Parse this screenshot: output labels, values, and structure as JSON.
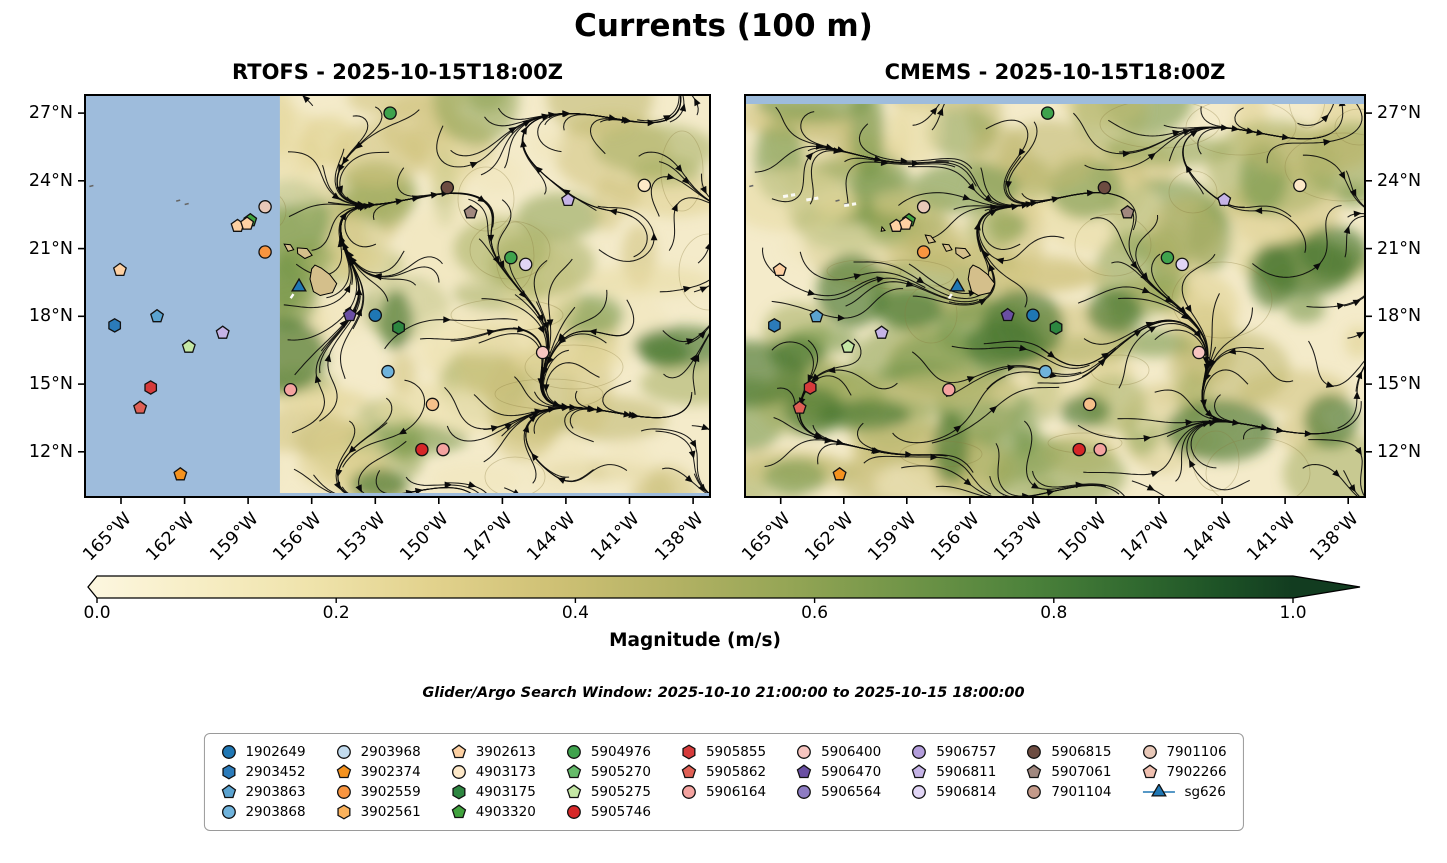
{
  "title": "Currents (100 m)",
  "search_window": "Glider/Argo Search Window: 2025-10-10 21:00:00 to 2025-10-15 18:00:00",
  "colors": {
    "ocean": "#9ebcdc",
    "land": "#d4bf8b",
    "map_background": "#f4ebca",
    "streamline": "#0b0b0b"
  },
  "colorbar": {
    "label": "Magnitude (m/s)",
    "ticks": [
      "0.0",
      "0.2",
      "0.4",
      "0.6",
      "0.8",
      "1.0"
    ],
    "min": 0.0,
    "max": 1.0,
    "extend": "max-arrow",
    "stops": [
      [
        0,
        "#fcf6de"
      ],
      [
        0.08,
        "#f7eec6"
      ],
      [
        0.18,
        "#efe3ab"
      ],
      [
        0.28,
        "#e2d28d"
      ],
      [
        0.38,
        "#cfc175"
      ],
      [
        0.48,
        "#b4b264"
      ],
      [
        0.58,
        "#94a555"
      ],
      [
        0.68,
        "#6f9447"
      ],
      [
        0.78,
        "#4c823b"
      ],
      [
        0.87,
        "#30692f"
      ],
      [
        0.94,
        "#1d5226"
      ],
      [
        1,
        "#123c20"
      ]
    ]
  },
  "legend": {
    "entries": [
      {
        "label": "1902649",
        "shape": "circle",
        "color": "#1f77b4",
        "col": 1,
        "row": 1
      },
      {
        "label": "2903452",
        "shape": "hexagon",
        "color": "#2b7bba",
        "col": 1,
        "row": 2
      },
      {
        "label": "2903863",
        "shape": "pentagon",
        "color": "#5ba3d0",
        "col": 1,
        "row": 3
      },
      {
        "label": "2903868",
        "shape": "circle",
        "color": "#6fb3dc",
        "col": 1,
        "row": 4
      },
      {
        "label": "2903968",
        "shape": "circle",
        "color": "#c3dcef",
        "col": 2,
        "row": 1
      },
      {
        "label": "3902374",
        "shape": "pentagon",
        "color": "#f5921e",
        "col": 2,
        "row": 2
      },
      {
        "label": "3902559",
        "shape": "circle",
        "color": "#f89540",
        "col": 2,
        "row": 3
      },
      {
        "label": "3902561",
        "shape": "hexagon",
        "color": "#fbb25c",
        "col": 2,
        "row": 4
      },
      {
        "label": "3902613",
        "shape": "pentagon",
        "color": "#fdd0a2",
        "col": 3,
        "row": 1
      },
      {
        "label": "4903173",
        "shape": "circle",
        "color": "#fde8c8",
        "col": 3,
        "row": 2
      },
      {
        "label": "4903175",
        "shape": "hexagon",
        "color": "#2d8640",
        "col": 3,
        "row": 3
      },
      {
        "label": "4903320",
        "shape": "pentagon",
        "color": "#41a33e",
        "col": 3,
        "row": 4
      },
      {
        "label": "5904976",
        "shape": "circle",
        "color": "#3fa34d",
        "col": 4,
        "row": 1
      },
      {
        "label": "5905270",
        "shape": "pentagon",
        "color": "#66bb6a",
        "col": 4,
        "row": 2
      },
      {
        "label": "5905275",
        "shape": "pentagon",
        "color": "#c5e8a5",
        "col": 4,
        "row": 3
      },
      {
        "label": "5905746",
        "shape": "circle",
        "color": "#d62728",
        "col": 4,
        "row": 4
      },
      {
        "label": "5905855",
        "shape": "hexagon",
        "color": "#d63b3b",
        "col": 5,
        "row": 1
      },
      {
        "label": "5905862",
        "shape": "pentagon",
        "color": "#e06055",
        "col": 5,
        "row": 2
      },
      {
        "label": "5906164",
        "shape": "circle",
        "color": "#f4a3a0",
        "col": 5,
        "row": 3
      },
      {
        "label": "5906400",
        "shape": "circle",
        "color": "#f7c5c0",
        "col": 6,
        "row": 1
      },
      {
        "label": "5906470",
        "shape": "pentagon",
        "color": "#6a4fa3",
        "col": 6,
        "row": 2
      },
      {
        "label": "5906564",
        "shape": "circle",
        "color": "#8e7cc3",
        "col": 6,
        "row": 3
      },
      {
        "label": "5906757",
        "shape": "circle",
        "color": "#b39ddb",
        "col": 7,
        "row": 1
      },
      {
        "label": "5906811",
        "shape": "pentagon",
        "color": "#c5b3e6",
        "col": 7,
        "row": 2
      },
      {
        "label": "5906814",
        "shape": "circle",
        "color": "#e1d5f5",
        "col": 7,
        "row": 3
      },
      {
        "label": "5906815",
        "shape": "circle",
        "color": "#6d4c41",
        "col": 8,
        "row": 1
      },
      {
        "label": "5907061",
        "shape": "pentagon",
        "color": "#a1887f",
        "col": 8,
        "row": 2
      },
      {
        "label": "7901104",
        "shape": "circle",
        "color": "#c49a8a",
        "col": 8,
        "row": 3
      },
      {
        "label": "7901106",
        "shape": "circle",
        "color": "#e8c8b8",
        "col": 9,
        "row": 1
      },
      {
        "label": "7902266",
        "shape": "pentagon",
        "color": "#f0c0b0",
        "col": 9,
        "row": 2
      },
      {
        "label": "sg626",
        "shape": "glider",
        "color": "#1f77b4",
        "col": 9,
        "row": 3
      }
    ]
  },
  "chart_data": {
    "type": "map-streamplot",
    "title": "Currents (100 m)",
    "variable": "ocean current magnitude at 100 m (m/s)",
    "panels": [
      {
        "name": "RTOFS",
        "title": "RTOFS - 2025-10-15T18:00Z",
        "yticks_side": "left",
        "no_data_west_of_lon_w": 157.5,
        "bottom_strip_blue": true,
        "top_strip_blue": false,
        "dark_green_blobs": 7,
        "white_marks": false
      },
      {
        "name": "CMEMS",
        "title": "CMEMS - 2025-10-15T18:00Z",
        "yticks_side": "right",
        "no_data_west_of_lon_w": null,
        "bottom_strip_blue": false,
        "top_strip_blue": true,
        "dark_green_blobs": 16,
        "white_marks": true
      }
    ],
    "lon_range_deg_w": [
      166.7,
      137.2
    ],
    "lat_range_deg_n": [
      27.8,
      10.0
    ],
    "xticks": [
      "165°W",
      "162°W",
      "159°W",
      "156°W",
      "153°W",
      "150°W",
      "147°W",
      "144°W",
      "141°W",
      "138°W"
    ],
    "xtick_lons": [
      165,
      162,
      159,
      156,
      153,
      150,
      147,
      144,
      141,
      138
    ],
    "yticks": [
      "12°N",
      "15°N",
      "18°N",
      "21°N",
      "24°N",
      "27°N"
    ],
    "ytick_lats": [
      12,
      15,
      18,
      21,
      24,
      27
    ],
    "glider_track": [
      [
        156.6,
        19.3
      ],
      [
        156.85,
        19.0
      ],
      [
        157.05,
        18.72
      ]
    ],
    "markers": [
      {
        "lon_w": 152.3,
        "lat_n": 27.0,
        "shape": "circle",
        "color": "#3fa34d"
      },
      {
        "lon_w": 149.6,
        "lat_n": 23.7,
        "shape": "circle",
        "color": "#6d4c41"
      },
      {
        "lon_w": 140.3,
        "lat_n": 23.8,
        "shape": "circle",
        "color": "#fde8c8"
      },
      {
        "lon_w": 158.2,
        "lat_n": 22.85,
        "shape": "circle",
        "color": "#e8c8b8"
      },
      {
        "lon_w": 158.9,
        "lat_n": 22.25,
        "shape": "pentagon",
        "color": "#41a33e"
      },
      {
        "lon_w": 159.5,
        "lat_n": 22.0,
        "shape": "pentagon",
        "color": "#fdd0a2"
      },
      {
        "lon_w": 159.05,
        "lat_n": 22.1,
        "shape": "pentagon",
        "color": "#fdd0a2"
      },
      {
        "lon_w": 148.5,
        "lat_n": 22.6,
        "shape": "pentagon",
        "color": "#a1887f"
      },
      {
        "lon_w": 143.9,
        "lat_n": 23.15,
        "shape": "pentagon",
        "color": "#c5b3e6"
      },
      {
        "lon_w": 158.2,
        "lat_n": 20.85,
        "shape": "circle",
        "color": "#f89540"
      },
      {
        "lon_w": 146.6,
        "lat_n": 20.6,
        "shape": "circle",
        "color": "#3fa34d"
      },
      {
        "lon_w": 145.9,
        "lat_n": 20.3,
        "shape": "circle",
        "color": "#e1d5f5"
      },
      {
        "lon_w": 165.05,
        "lat_n": 20.05,
        "shape": "pentagon",
        "color": "#fdd0a2"
      },
      {
        "lon_w": 156.6,
        "lat_n": 19.3,
        "shape": "glider",
        "color": "#1f77b4"
      },
      {
        "lon_w": 154.2,
        "lat_n": 18.05,
        "shape": "pentagon",
        "color": "#6a4fa3"
      },
      {
        "lon_w": 153.0,
        "lat_n": 18.05,
        "shape": "circle",
        "color": "#1f77b4"
      },
      {
        "lon_w": 151.9,
        "lat_n": 17.5,
        "shape": "hexagon",
        "color": "#2d8640"
      },
      {
        "lon_w": 165.3,
        "lat_n": 17.6,
        "shape": "hexagon",
        "color": "#2b7bba"
      },
      {
        "lon_w": 163.3,
        "lat_n": 18.0,
        "shape": "pentagon",
        "color": "#5ba3d0"
      },
      {
        "lon_w": 160.2,
        "lat_n": 17.27,
        "shape": "pentagon",
        "color": "#c5b3e6"
      },
      {
        "lon_w": 161.8,
        "lat_n": 16.65,
        "shape": "pentagon",
        "color": "#c5e8a5"
      },
      {
        "lon_w": 145.1,
        "lat_n": 16.4,
        "shape": "circle",
        "color": "#f7c5c0"
      },
      {
        "lon_w": 152.4,
        "lat_n": 15.55,
        "shape": "circle",
        "color": "#6fb3dc"
      },
      {
        "lon_w": 163.6,
        "lat_n": 14.85,
        "shape": "hexagon",
        "color": "#d63b3b"
      },
      {
        "lon_w": 157.0,
        "lat_n": 14.75,
        "shape": "circle",
        "color": "#f4a3a0"
      },
      {
        "lon_w": 164.1,
        "lat_n": 13.95,
        "shape": "pentagon",
        "color": "#e06055"
      },
      {
        "lon_w": 150.3,
        "lat_n": 14.1,
        "shape": "circle",
        "color": "#f5c08a"
      },
      {
        "lon_w": 150.8,
        "lat_n": 12.1,
        "shape": "circle",
        "color": "#d62728"
      },
      {
        "lon_w": 149.8,
        "lat_n": 12.1,
        "shape": "circle",
        "color": "#f4a3a0"
      },
      {
        "lon_w": 162.2,
        "lat_n": 11.0,
        "shape": "pentagon",
        "color": "#f5921e"
      }
    ]
  }
}
